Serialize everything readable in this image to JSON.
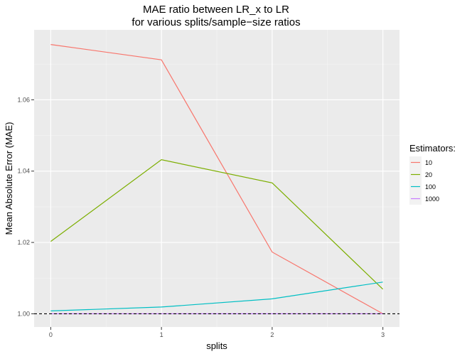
{
  "chart_data": {
    "type": "line",
    "title": [
      "MAE ratio between LR_x to LR",
      "for various splits/sample−size ratios"
    ],
    "xlabel": "splits",
    "ylabel": "Mean Absolute Error (MAE)",
    "x": [
      0,
      1,
      2,
      3
    ],
    "xticks": [
      "0",
      "1",
      "2",
      "3"
    ],
    "xlim": [
      -0.15,
      3.15
    ],
    "yticks": [
      1.0,
      1.02,
      1.04,
      1.06
    ],
    "ytick_labels": [
      "1.00",
      "1.02",
      "1.04",
      "1.06"
    ],
    "ylim": [
      0.9963,
      1.0796
    ],
    "reference_line": {
      "y": 1.0,
      "style": "dashed",
      "color": "#000000"
    },
    "grid": true,
    "background": "#ebebeb",
    "legend": {
      "title": "Estimators:",
      "position": "right"
    },
    "series": [
      {
        "name": "10",
        "color": "#f8766d",
        "values": [
          1.0755,
          1.0712,
          1.0173,
          1.0
        ]
      },
      {
        "name": "20",
        "color": "#7cae00",
        "values": [
          1.0203,
          1.0432,
          1.0367,
          1.0069
        ]
      },
      {
        "name": "100",
        "color": "#00bfc4",
        "values": [
          1.0008,
          1.0019,
          1.0042,
          1.0089
        ]
      },
      {
        "name": "1000",
        "color": "#c77cff",
        "values": [
          1.0,
          1.0,
          1.0,
          1.0
        ]
      }
    ]
  }
}
